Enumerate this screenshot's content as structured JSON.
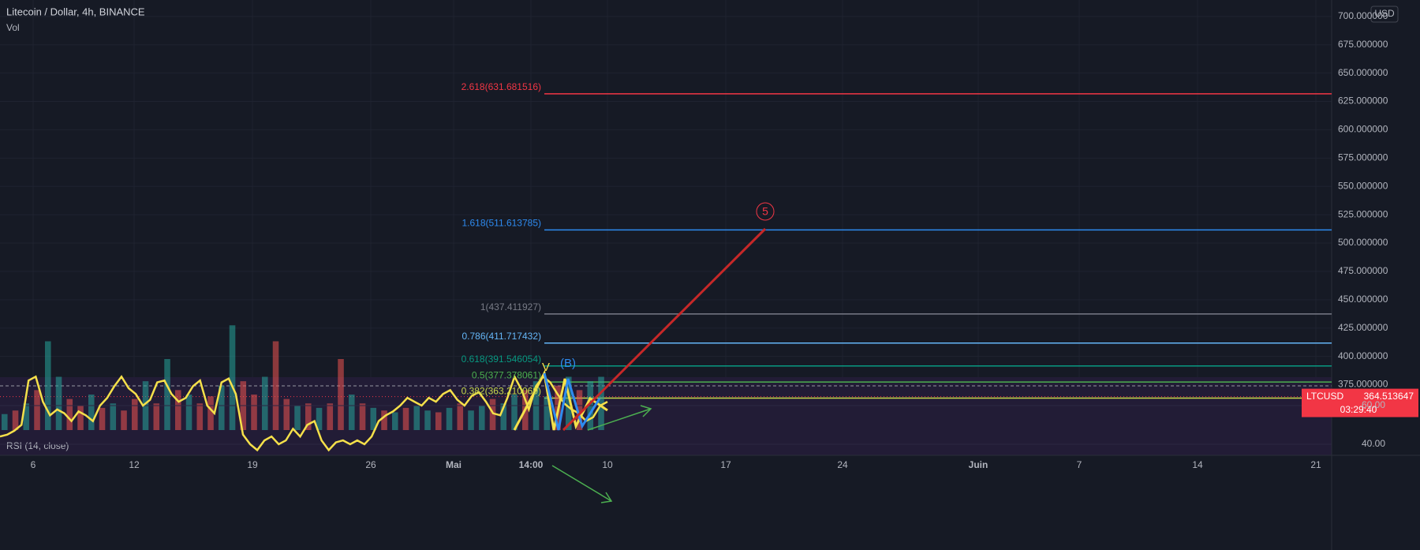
{
  "header": {
    "title": "Litecoin / Dollar, 4h, BINANCE",
    "volume_label": "Vol",
    "currency": "USD"
  },
  "chart_data": [
    {
      "type": "fibonacci",
      "ylim": [
        331.5,
        714.5
      ],
      "yticks": [
        {
          "value": 700,
          "label": "700.000000"
        },
        {
          "value": 675,
          "label": "675.000000"
        },
        {
          "value": 650,
          "label": "650.000000"
        },
        {
          "value": 625,
          "label": "625.000000"
        },
        {
          "value": 600,
          "label": "600.000000"
        },
        {
          "value": 575,
          "label": "575.000000"
        },
        {
          "value": 550,
          "label": "550.000000"
        },
        {
          "value": 525,
          "label": "525.000000"
        },
        {
          "value": 500,
          "label": "500.000000"
        },
        {
          "value": 475,
          "label": "475.000000"
        },
        {
          "value": 450,
          "label": "450.000000"
        },
        {
          "value": 425,
          "label": "425.000000"
        },
        {
          "value": 400,
          "label": "400.000000"
        },
        {
          "value": 375,
          "label": "375.000000"
        }
      ],
      "levels": [
        {
          "label": "2.618(631.681516)",
          "value": 631.681516,
          "color": "#f23645"
        },
        {
          "label": "1.618(511.613785)",
          "value": 511.613785,
          "color": "#2e8bf0"
        },
        {
          "label": "1(437.411927)",
          "value": 437.411927,
          "color": "#787b86"
        },
        {
          "label": "0.786(411.717432)",
          "value": 411.717432,
          "color": "#64b5f6"
        },
        {
          "label": "0.618(391.546054)",
          "value": 391.546054,
          "color": "#089981"
        },
        {
          "label": "0.5(377.378061)",
          "value": 377.378061,
          "color": "#4caf50"
        },
        {
          "label": "0.382(363.210069)",
          "value": 363.210069,
          "color": "#c6d84a"
        }
      ],
      "last_price": {
        "symbol": "LTCUSD",
        "value": 364.513647,
        "countdown": "03:29:40",
        "color": "#f23645"
      },
      "annotations": {
        "wave_v": "V",
        "wave_b": "(B)",
        "wave_5": "5"
      },
      "xticks": [
        "6",
        "12",
        "19",
        "26",
        "Mai",
        "14:00",
        "10",
        "17",
        "24",
        "Juin",
        "7",
        "14",
        "21"
      ]
    },
    {
      "type": "bar",
      "ylim": [
        0,
        120
      ],
      "values": [
        18,
        22,
        30,
        45,
        100,
        60,
        35,
        28,
        40,
        25,
        30,
        22,
        35,
        55,
        30,
        80,
        45,
        40,
        30,
        38,
        50,
        118,
        55,
        40,
        60,
        100,
        35,
        28,
        30,
        25,
        30,
        80,
        40,
        30,
        25,
        22,
        20,
        25,
        28,
        22,
        20,
        25,
        30,
        22,
        28,
        35,
        30,
        40,
        45,
        55,
        38,
        50,
        60,
        45,
        55,
        60
      ],
      "colors": [
        "#26a69a",
        "#ef5350",
        "#26a69a",
        "#ef5350",
        "#26a69a",
        "#26a69a",
        "#ef5350",
        "#ef5350",
        "#26a69a",
        "#ef5350",
        "#26a69a",
        "#ef5350",
        "#ef5350",
        "#26a69a",
        "#ef5350",
        "#26a69a",
        "#ef5350",
        "#26a69a",
        "#ef5350",
        "#ef5350",
        "#26a69a",
        "#26a69a",
        "#ef5350",
        "#ef5350",
        "#26a69a",
        "#ef5350",
        "#ef5350",
        "#26a69a",
        "#ef5350",
        "#26a69a",
        "#ef5350",
        "#ef5350",
        "#26a69a",
        "#ef5350",
        "#26a69a",
        "#ef5350",
        "#26a69a",
        "#ef5350",
        "#26a69a",
        "#26a69a",
        "#ef5350",
        "#26a69a",
        "#ef5350",
        "#26a69a",
        "#26a69a",
        "#ef5350",
        "#26a69a",
        "#26a69a",
        "#ef5350",
        "#26a69a",
        "#26a69a",
        "#ef5350",
        "#26a69a",
        "#ef5350",
        "#26a69a",
        "#26a69a"
      ]
    },
    {
      "type": "line",
      "title": "RSI (14, close)",
      "color": "#f5e04a",
      "ylim": [
        34.3,
        74.7
      ],
      "yticks": [
        {
          "value": 60,
          "label": "60.00"
        },
        {
          "value": 40,
          "label": "40.00"
        }
      ],
      "values": [
        44,
        45,
        47,
        50,
        73,
        75,
        62,
        55,
        58,
        56,
        52,
        57,
        55,
        52,
        60,
        64,
        70,
        75,
        69,
        66,
        60,
        63,
        72,
        73,
        66,
        62,
        64,
        70,
        73,
        60,
        56,
        72,
        74,
        66,
        45,
        40,
        37,
        42,
        44,
        40,
        42,
        48,
        44,
        50,
        52,
        42,
        37,
        41,
        42,
        40,
        42,
        40,
        44,
        52,
        55,
        57,
        60,
        64,
        62,
        60,
        64,
        62,
        66,
        68,
        63,
        60,
        65,
        67,
        62,
        56,
        55,
        64,
        75,
        68,
        58,
        70,
        75,
        72,
        66,
        61,
        58,
        56,
        52,
        54,
        60,
        62
      ]
    }
  ]
}
